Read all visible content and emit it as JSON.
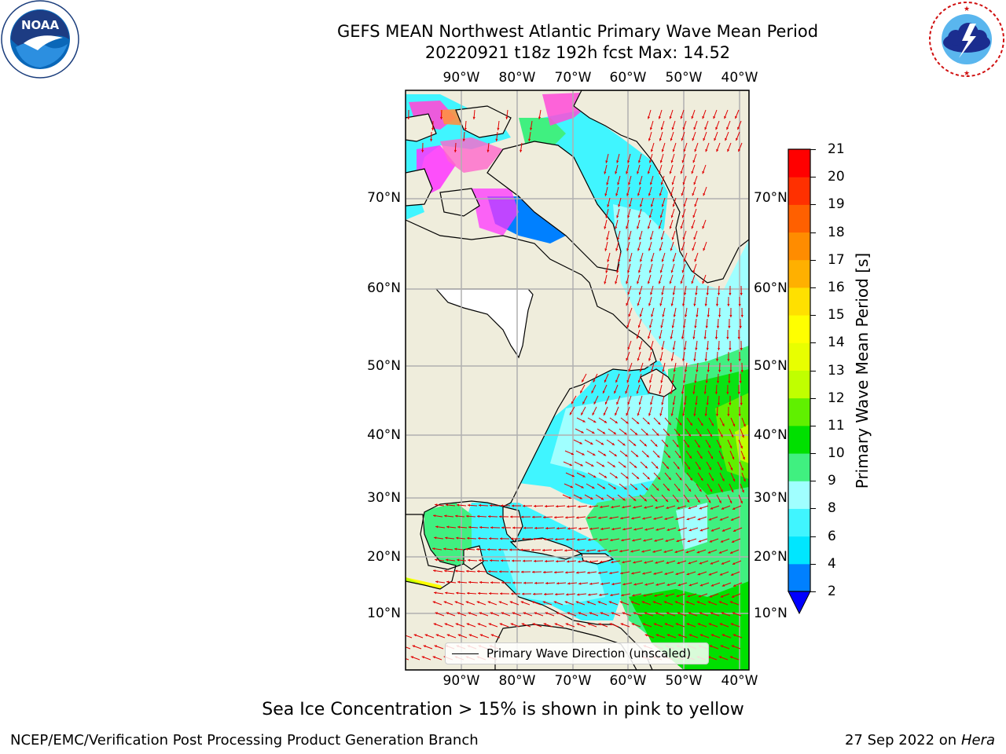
{
  "title": {
    "line1": "GEFS MEAN Northwest Atlantic Primary Wave Mean Period",
    "line2": "20220921 t18z 192h fcst   Max: 14.52"
  },
  "logos": {
    "left": {
      "icon": "noaa-logo-icon",
      "text": "NOAA",
      "ring_text": "NATIONAL OCEANIC AND ATMOSPHERIC ADMINISTRATION · U.S. DEPARTMENT OF COMMERCE"
    },
    "right": {
      "icon": "nws-logo-icon",
      "ring_text": "NATIONAL WEATHER SERVICE"
    }
  },
  "map": {
    "lon_labels": [
      "90°W",
      "80°W",
      "70°W",
      "60°W",
      "50°W",
      "40°W"
    ],
    "lat_labels": [
      "70°N",
      "60°N",
      "50°N",
      "40°N",
      "30°N",
      "20°N",
      "10°N"
    ],
    "extent": {
      "lon_min": -100,
      "lon_max": -38,
      "lat_min": 2,
      "lat_max": 80
    },
    "colors": {
      "land": "#efeddc",
      "gridline": "#b0b0b0",
      "arrow": "#e00000",
      "coast": "#000000"
    },
    "legend": "Primary Wave Direction (unscaled)"
  },
  "colorbar": {
    "label": "Primary Wave Mean Period [s]",
    "tick_labels": [
      "2",
      "4",
      "6",
      "8",
      "9",
      "10",
      "11",
      "12",
      "13",
      "14",
      "15",
      "16",
      "17",
      "18",
      "19",
      "20",
      "21"
    ],
    "colors": [
      "#0080ff",
      "#00e6ff",
      "#40f5ff",
      "#a0ffff",
      "#40f080",
      "#00e000",
      "#60f000",
      "#c0ff00",
      "#e8ff00",
      "#ffff00",
      "#ffe000",
      "#ffb000",
      "#ff8c00",
      "#ff6000",
      "#ff3000",
      "#ff0000"
    ],
    "under_color": "#0000ff"
  },
  "note": "Sea Ice Concentration > 15% is shown in pink to yellow",
  "footer": {
    "left": "NCEP/EMC/Verification Post Processing Product Generation Branch",
    "right_date": "27 Sep 2022 on",
    "right_machine": "Hera"
  }
}
